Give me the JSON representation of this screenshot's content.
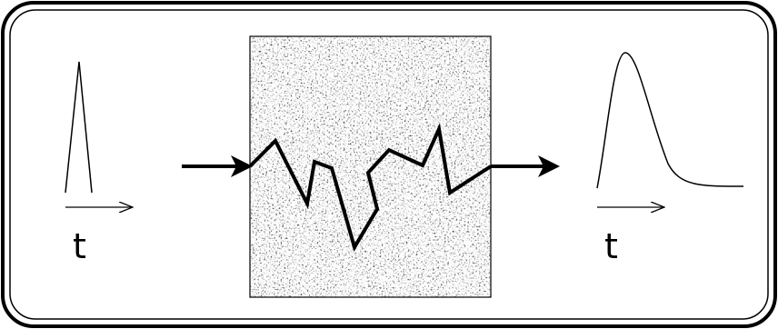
{
  "input": {
    "axis_label": "t"
  },
  "output": {
    "axis_label": "t"
  }
}
